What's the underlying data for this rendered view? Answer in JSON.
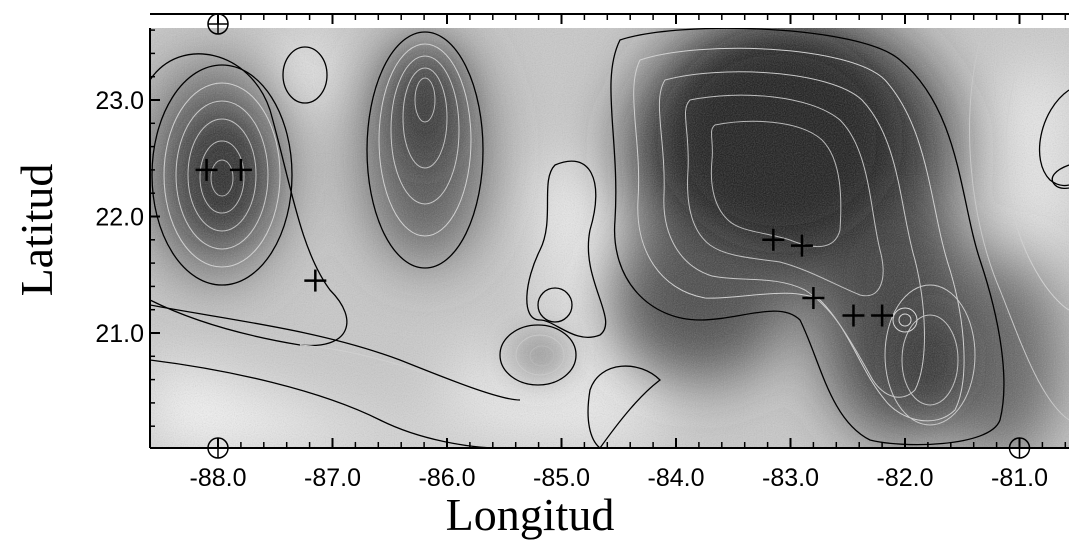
{
  "map": {
    "xlabel": "Longitud",
    "ylabel": "Latitud",
    "x_ticks": [
      {
        "value": -88.0,
        "label": "-88.0"
      },
      {
        "value": -87.0,
        "label": "-87.0"
      },
      {
        "value": -86.0,
        "label": "-86.0"
      },
      {
        "value": -85.0,
        "label": "-85.0"
      },
      {
        "value": -84.0,
        "label": "-84.0"
      },
      {
        "value": -83.0,
        "label": "-83.0"
      },
      {
        "value": -82.0,
        "label": "-82.0"
      },
      {
        "value": -81.0,
        "label": "-81.0"
      }
    ],
    "y_ticks": [
      {
        "value": 23.0,
        "label": "23.0"
      },
      {
        "value": 22.0,
        "label": "22.0"
      },
      {
        "value": 21.0,
        "label": "21.0"
      }
    ],
    "xlim": [
      -88.6,
      -80.6
    ],
    "ylim": [
      20.0,
      23.6
    ],
    "cross_markers": [
      {
        "lon": -88.1,
        "lat": 22.4
      },
      {
        "lon": -87.8,
        "lat": 22.4
      },
      {
        "lon": -87.15,
        "lat": 21.45
      },
      {
        "lon": -83.15,
        "lat": 21.8
      },
      {
        "lon": -82.9,
        "lat": 21.75
      },
      {
        "lon": -82.8,
        "lat": 21.3
      },
      {
        "lon": -82.45,
        "lat": 21.15
      },
      {
        "lon": -82.2,
        "lat": 21.15
      }
    ],
    "circle_markers": [
      {
        "lon": -88.0,
        "lat": 23.6
      },
      {
        "lon": -88.0,
        "lat": 20.0
      },
      {
        "lon": -81.0,
        "lat": 20.0
      }
    ],
    "colors": {
      "low": "#ffffff",
      "high": "#222222",
      "contour": "#000000"
    }
  }
}
